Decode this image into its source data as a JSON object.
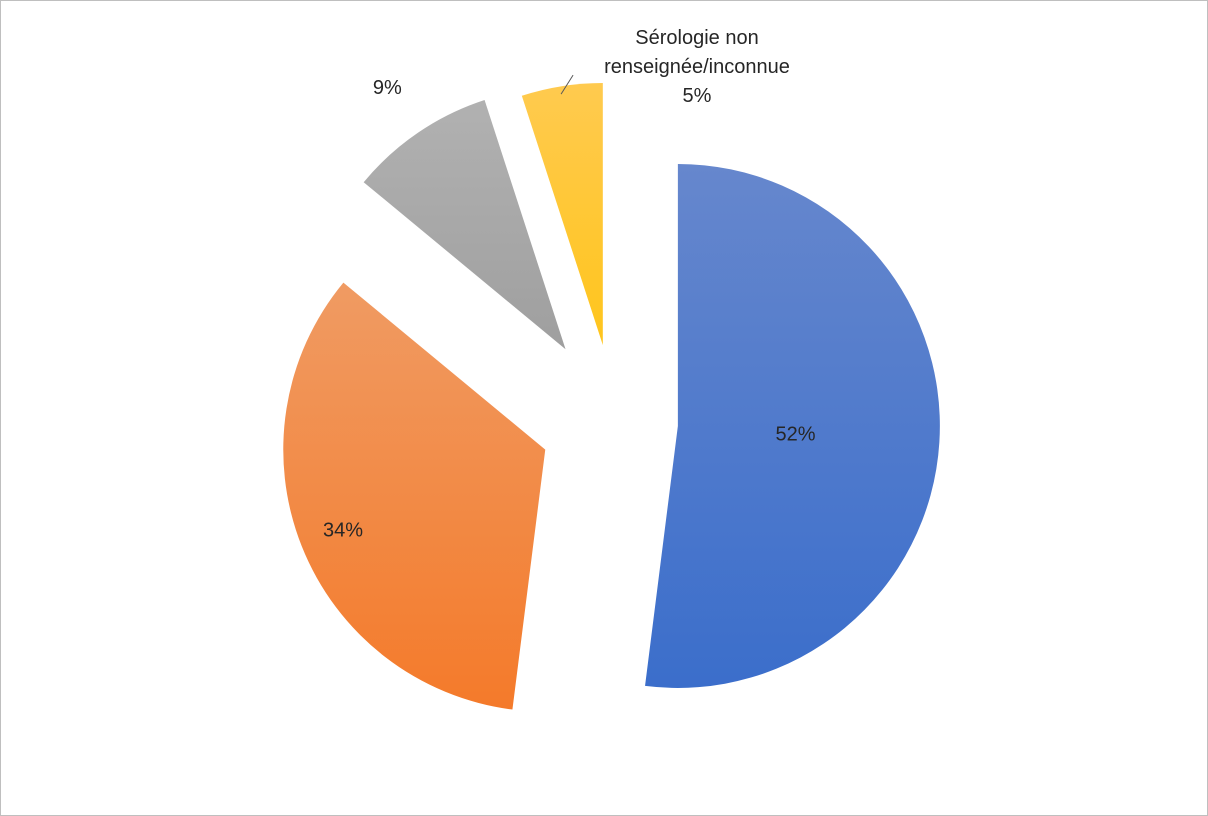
{
  "chart_data": {
    "type": "pie",
    "exploded": true,
    "start_angle_deg": 0,
    "direction": "clockwise",
    "slices": [
      {
        "label": "",
        "value": 52,
        "value_label": "52%",
        "color_start": "#6687cd",
        "color_end": "#3b6ecb",
        "label_position": "inside"
      },
      {
        "label": "",
        "value": 34,
        "value_label": "34%",
        "color_start": "#f09b63",
        "color_end": "#f47a2a",
        "label_position": "inside"
      },
      {
        "label": "",
        "value": 9,
        "value_label": "9%",
        "color_start": "#b1b1b1",
        "color_end": "#9f9f9f",
        "label_position": "outside"
      },
      {
        "label": "Sérologie non renseignée/inconnue",
        "label_lines": [
          "Sérologie non",
          "renseignée/inconnue"
        ],
        "value": 5,
        "value_label": "5%",
        "color_start": "#ffca4f",
        "color_end": "#ffc51c",
        "label_position": "outside-with-leader"
      }
    ]
  }
}
